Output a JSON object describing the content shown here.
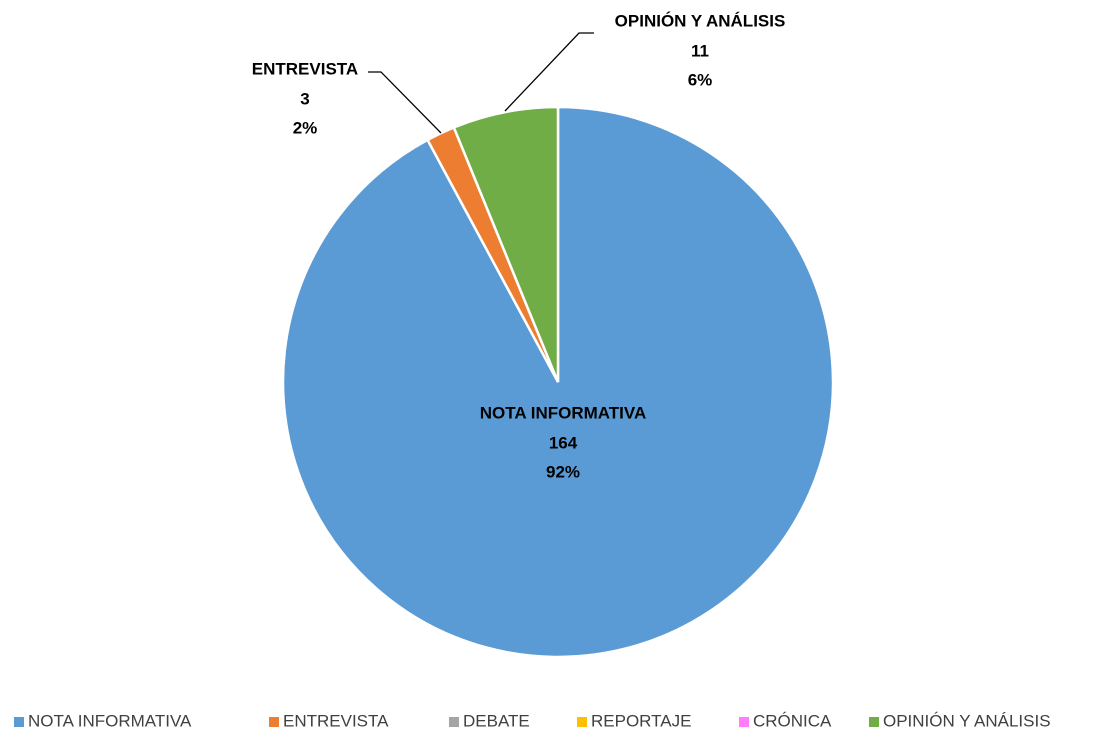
{
  "chart_data": {
    "type": "pie",
    "categories": [
      "NOTA INFORMATIVA",
      "ENTREVISTA",
      "DEBATE",
      "REPORTAJE",
      "CRÓNICA",
      "OPINIÓN Y ANÁLISIS"
    ],
    "values": [
      164,
      3,
      0,
      0,
      0,
      11
    ],
    "percent_labels": [
      "92%",
      "2%",
      null,
      null,
      null,
      "6%"
    ],
    "colors": [
      "#5b9bd5",
      "#ed7d31",
      "#a5a5a5",
      "#ffc000",
      "#ff7cff",
      "#70ad47"
    ],
    "legend": "bottom"
  }
}
